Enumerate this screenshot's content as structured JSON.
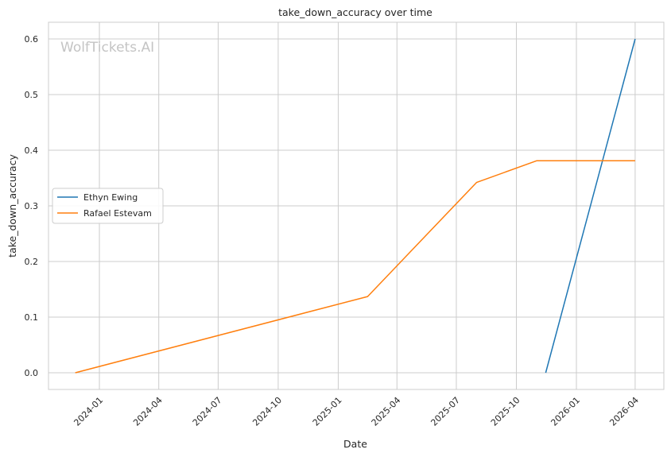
{
  "chart_data": {
    "type": "line",
    "title": "take_down_accuracy over time",
    "xlabel": "Date",
    "ylabel": "take_down_accuracy",
    "watermark": "WolfTickets.AI",
    "x_ticks": [
      "2024-01",
      "2024-04",
      "2024-07",
      "2024-10",
      "2025-01",
      "2025-04",
      "2025-07",
      "2025-10",
      "2026-01",
      "2026-04"
    ],
    "y_ticks": [
      "0.0",
      "0.1",
      "0.2",
      "0.3",
      "0.4",
      "0.5",
      "0.6"
    ],
    "xlim": [
      "2023-10-15",
      "2026-05-15"
    ],
    "ylim": [
      -0.03,
      0.63
    ],
    "grid": true,
    "legend_position": "center-left",
    "series": [
      {
        "name": "Ethyn Ewing",
        "color": "#1f77b4",
        "x": [
          "2025-11-15",
          "2026-04-01"
        ],
        "values": [
          0.0,
          0.6
        ]
      },
      {
        "name": "Rafael Estevam",
        "color": "#ff7f0e",
        "x": [
          "2023-11-25",
          "2025-02-15",
          "2025-08-01",
          "2025-11-01",
          "2026-04-01"
        ],
        "values": [
          0.0,
          0.137,
          0.342,
          0.381,
          0.381
        ]
      }
    ]
  }
}
